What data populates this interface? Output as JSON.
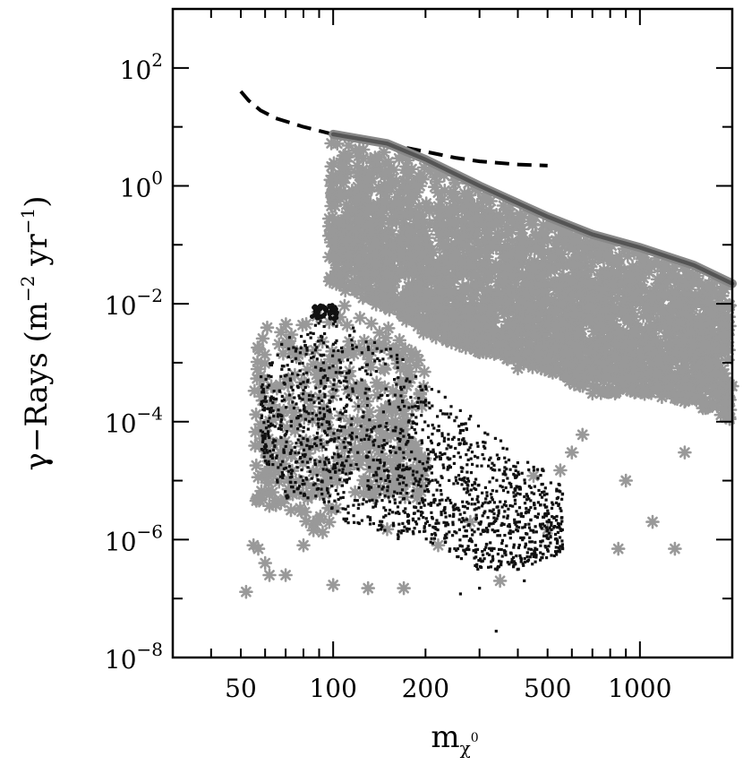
{
  "chart_data": {
    "type": "scatter",
    "title": "",
    "xscale": "log",
    "yscale": "log",
    "xlim": [
      30,
      2000
    ],
    "ylim": [
      1e-08,
      1000
    ],
    "grid": false,
    "xlabel": {
      "base": "m",
      "sub": "χ",
      "subsup": "0"
    },
    "ylabel": {
      "parts": [
        {
          "t": "γ−Rays (m"
        },
        {
          "t": "−2",
          "sup": true
        },
        {
          "t": " yr"
        },
        {
          "t": "−1",
          "sup": true
        },
        {
          "t": ")"
        }
      ]
    },
    "x_ticks": [
      {
        "value": 50,
        "label": "50"
      },
      {
        "value": 100,
        "label": "100"
      },
      {
        "value": 200,
        "label": "200"
      },
      {
        "value": 500,
        "label": "500"
      },
      {
        "value": 1000,
        "label": "1000"
      }
    ],
    "y_ticks": [
      {
        "value": 100.0,
        "base": "10",
        "exp": "2"
      },
      {
        "value": 1.0,
        "base": "10",
        "exp": "0"
      },
      {
        "value": 0.01,
        "base": "10",
        "exp": "−2"
      },
      {
        "value": 0.0001,
        "base": "10",
        "exp": "−4"
      },
      {
        "value": 1e-06,
        "base": "10",
        "exp": "−6"
      },
      {
        "value": 1e-08,
        "base": "10",
        "exp": "−8"
      }
    ],
    "series": [
      {
        "style": "dashed-line",
        "color": "#000000",
        "points": [
          [
            50,
            40
          ],
          [
            53,
            28
          ],
          [
            58,
            19
          ],
          [
            65,
            14
          ],
          [
            80,
            10
          ],
          [
            100,
            7.5
          ],
          [
            130,
            6
          ],
          [
            160,
            4.8
          ],
          [
            200,
            3.8
          ],
          [
            250,
            3.0
          ],
          [
            300,
            2.6
          ],
          [
            400,
            2.3
          ],
          [
            500,
            2.2
          ]
        ]
      },
      {
        "style": "solid-band",
        "color": "#555555",
        "points": [
          [
            100,
            7.5
          ],
          [
            150,
            5.2
          ],
          [
            200,
            2.8
          ],
          [
            300,
            1.0
          ],
          [
            500,
            0.3
          ],
          [
            700,
            0.15
          ],
          [
            1000,
            0.09
          ],
          [
            1500,
            0.045
          ],
          [
            2000,
            0.022
          ]
        ]
      },
      {
        "style": "gray-star-cloud",
        "color": "#999999",
        "regions": [
          {
            "xmin": 97,
            "xmax": 2000,
            "ytop_x": [
              100,
              150,
              200,
              300,
              500,
              700,
              1000,
              1500,
              2000
            ],
            "ytop": [
              7,
              5,
              2.6,
              0.9,
              0.28,
              0.14,
              0.08,
              0.04,
              0.02
            ],
            "ybot": [
              0.02,
              0.008,
              0.003,
              0.0015,
              0.0007,
              0.0003,
              0.0003,
              0.0002,
              0.0001
            ],
            "density": 2600
          },
          {
            "xmin": 55,
            "xmax": 200,
            "ytop_x": [
              55,
              70,
              90,
              110,
              150,
              200
            ],
            "ytop": [
              0.003,
              0.006,
              0.01,
              0.01,
              0.004,
              0.002
            ],
            "ybot": [
              3e-06,
              3e-06,
              1e-06,
              5e-06,
              5e-06,
              5e-06
            ],
            "density": 420
          }
        ],
        "outliers": [
          [
            52,
            1.3e-07
          ],
          [
            55,
            8e-07
          ],
          [
            57,
            7e-07
          ],
          [
            60,
            4e-07
          ],
          [
            62,
            2.5e-07
          ],
          [
            70,
            2.5e-07
          ],
          [
            80,
            8e-07
          ],
          [
            100,
            1.7e-07
          ],
          [
            130,
            1.5e-07
          ],
          [
            150,
            1.5e-06
          ],
          [
            170,
            1.5e-07
          ],
          [
            220,
            8e-07
          ],
          [
            280,
            2e-06
          ],
          [
            350,
            2e-07
          ],
          [
            450,
            1.2e-05
          ],
          [
            500,
            1.5e-06
          ],
          [
            550,
            1.5e-05
          ],
          [
            600,
            3e-05
          ],
          [
            650,
            6e-05
          ],
          [
            700,
            0.0003
          ],
          [
            850,
            7e-07
          ],
          [
            900,
            1e-05
          ],
          [
            1100,
            2e-06
          ],
          [
            1300,
            7e-07
          ],
          [
            1400,
            3e-05
          ],
          [
            1600,
            0.0002
          ],
          [
            1800,
            0.001
          ],
          [
            2000,
            0.0004
          ],
          [
            300,
            0.0015
          ],
          [
            350,
            0.002
          ],
          [
            400,
            0.0008
          ],
          [
            500,
            0.0011
          ],
          [
            1900,
            0.003
          ],
          [
            1950,
            0.006
          ]
        ]
      },
      {
        "style": "black-dot-cloud",
        "color": "#111111",
        "regions": [
          {
            "xmin": 58,
            "xmax": 560,
            "ytop_x": [
              58,
              70,
              90,
              110,
              150,
              200,
              300,
              400,
              560
            ],
            "ytop": [
              0.0006,
              0.004,
              0.008,
              0.006,
              0.002,
              0.0005,
              0.0001,
              3e-05,
              1e-05
            ],
            "ybot": [
              3e-05,
              5e-06,
              5e-06,
              2e-06,
              1e-06,
              1e-06,
              3e-07,
              3e-07,
              6e-07
            ],
            "density": 1700
          }
        ],
        "cluster": {
          "x": [
            85,
            103
          ],
          "y": [
            0.0055,
            0.0095
          ],
          "count": 60
        },
        "outliers": [
          [
            340,
            2.8e-08
          ],
          [
            260,
            1.2e-07
          ],
          [
            300,
            1.5e-07
          ],
          [
            420,
            2e-07
          ],
          [
            560,
            7e-07
          ]
        ]
      }
    ]
  }
}
